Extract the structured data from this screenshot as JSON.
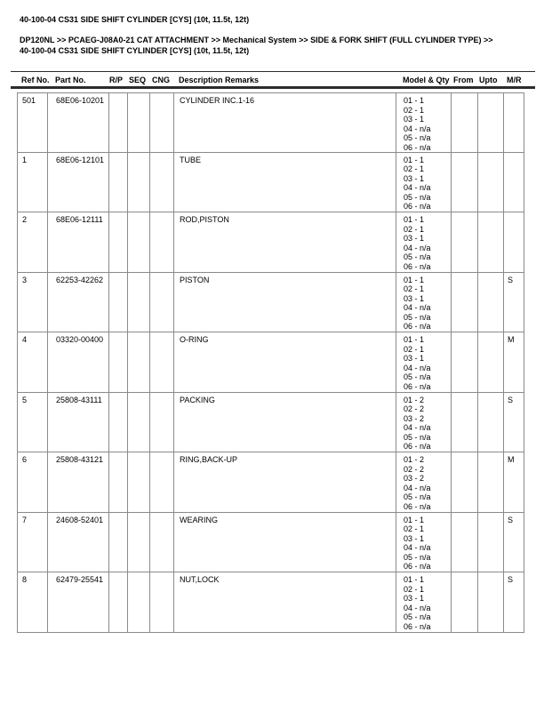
{
  "page": {
    "title": "40-100-04 CS31 SIDE SHIFT CYLINDER [CYS] (10t, 11.5t, 12t)",
    "breadcrumb": {
      "line1": "DP120NL >> PCAEG-J08A0-21 CAT ATTACHMENT >> Mechanical System >> SIDE & FORK SHIFT (FULL CYLINDER TYPE) >>",
      "line2": "40-100-04 CS31 SIDE SHIFT CYLINDER [CYS] (10t, 11.5t, 12t)"
    }
  },
  "table": {
    "headers": {
      "ref_no": "Ref No.",
      "part_no": "Part No.",
      "rp": "R/P",
      "seq": "SEQ",
      "cng": "CNG",
      "description": "Description Remarks",
      "model_qty": "Model & Qty",
      "from": "From",
      "upto": "Upto",
      "mr": "M/R"
    },
    "rows": [
      {
        "ref_no": "501",
        "part_no": "68E06-10201",
        "rp": "",
        "seq": "",
        "cng": "",
        "description": "CYLINDER INC.1-16",
        "model_qty": [
          "01 - 1",
          "02 - 1",
          "03 - 1",
          "04 - n/a",
          "05 - n/a",
          "06 - n/a"
        ],
        "from": "",
        "upto": "",
        "mr": ""
      },
      {
        "ref_no": "1",
        "part_no": "68E06-12101",
        "rp": "",
        "seq": "",
        "cng": "",
        "description": "TUBE",
        "model_qty": [
          "01 - 1",
          "02 - 1",
          "03 - 1",
          "04 - n/a",
          "05 - n/a",
          "06 - n/a"
        ],
        "from": "",
        "upto": "",
        "mr": ""
      },
      {
        "ref_no": "2",
        "part_no": "68E06-12111",
        "rp": "",
        "seq": "",
        "cng": "",
        "description": "ROD,PISTON",
        "model_qty": [
          "01 - 1",
          "02 - 1",
          "03 - 1",
          "04 - n/a",
          "05 - n/a",
          "06 - n/a"
        ],
        "from": "",
        "upto": "",
        "mr": ""
      },
      {
        "ref_no": "3",
        "part_no": "62253-42262",
        "rp": "",
        "seq": "",
        "cng": "",
        "description": "PISTON",
        "model_qty": [
          "01 - 1",
          "02 - 1",
          "03 - 1",
          "04 - n/a",
          "05 - n/a",
          "06 - n/a"
        ],
        "from": "",
        "upto": "",
        "mr": "S"
      },
      {
        "ref_no": "4",
        "part_no": "03320-00400",
        "rp": "",
        "seq": "",
        "cng": "",
        "description": "O-RING",
        "model_qty": [
          "01 - 1",
          "02 - 1",
          "03 - 1",
          "04 - n/a",
          "05 - n/a",
          "06 - n/a"
        ],
        "from": "",
        "upto": "",
        "mr": "M"
      },
      {
        "ref_no": "5",
        "part_no": "25808-43111",
        "rp": "",
        "seq": "",
        "cng": "",
        "description": "PACKING",
        "model_qty": [
          "01 - 2",
          "02 - 2",
          "03 - 2",
          "04 - n/a",
          "05 - n/a",
          "06 - n/a"
        ],
        "from": "",
        "upto": "",
        "mr": "S"
      },
      {
        "ref_no": "6",
        "part_no": "25808-43121",
        "rp": "",
        "seq": "",
        "cng": "",
        "description": "RING,BACK-UP",
        "model_qty": [
          "01 - 2",
          "02 - 2",
          "03 - 2",
          "04 - n/a",
          "05 - n/a",
          "06 - n/a"
        ],
        "from": "",
        "upto": "",
        "mr": "M"
      },
      {
        "ref_no": "7",
        "part_no": "24608-52401",
        "rp": "",
        "seq": "",
        "cng": "",
        "description": "WEARING",
        "model_qty": [
          "01 - 1",
          "02 - 1",
          "03 - 1",
          "04 - n/a",
          "05 - n/a",
          "06 - n/a"
        ],
        "from": "",
        "upto": "",
        "mr": "S"
      },
      {
        "ref_no": "8",
        "part_no": "62479-25541",
        "rp": "",
        "seq": "",
        "cng": "",
        "description": "NUT,LOCK",
        "model_qty": [
          "01 - 1",
          "02 - 1",
          "03 - 1",
          "04 - n/a",
          "05 - n/a",
          "06 - n/a"
        ],
        "from": "",
        "upto": "",
        "mr": "S"
      }
    ]
  },
  "colors": {
    "text": "#000000",
    "cell_border": "#8a8a8a",
    "rule": "#2b2b2b"
  }
}
